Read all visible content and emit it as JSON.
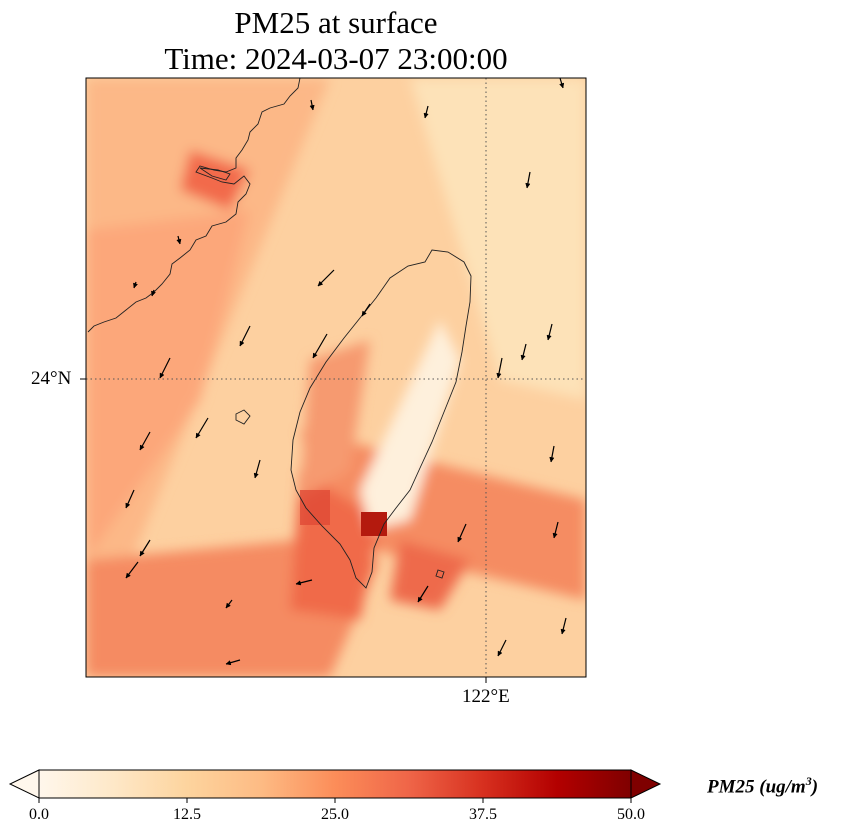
{
  "title": {
    "line1": "PM25 at surface",
    "line2": "Time: 2024-03-07 23:00:00"
  },
  "axes": {
    "lat_label": "24°N",
    "lon_label": "122°E"
  },
  "colorbar": {
    "label_text": "PM25 (ug/m",
    "label_superscript": "3",
    "label_suffix": ")",
    "ticks": [
      "0.0",
      "12.5",
      "25.0",
      "37.5",
      "50.0"
    ],
    "min": 0,
    "max": 50,
    "extend": "both",
    "colormap": "OrRd",
    "colors": [
      "#fff7ec",
      "#fee8c8",
      "#fdd49e",
      "#fdbb84",
      "#fc8d59",
      "#ef6548",
      "#d7301f",
      "#b30000",
      "#7f0000"
    ]
  },
  "map": {
    "background_value": 17,
    "gridlines": "dotted"
  }
}
